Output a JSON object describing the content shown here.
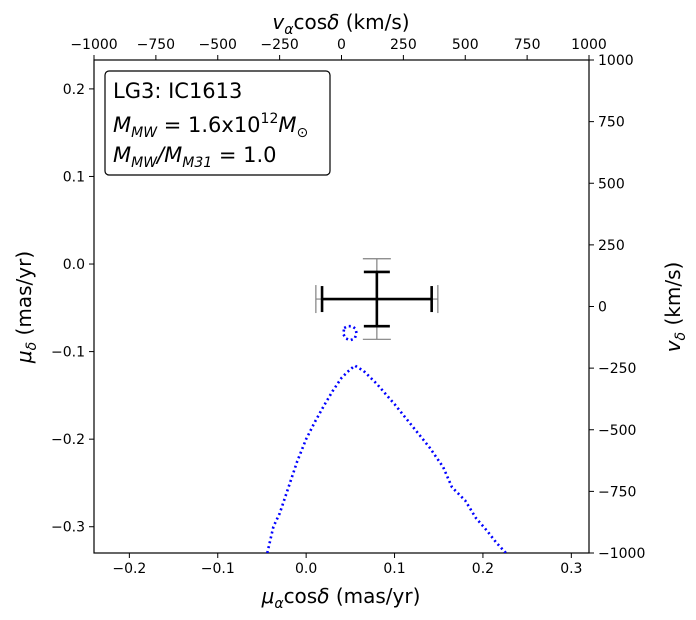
{
  "chart_data": {
    "type": "scatter",
    "xlabel": "μ_α cos δ (mas/yr)",
    "ylabel": "μ_δ (mas/yr)",
    "top_xlabel": "v_α cos δ (km/s)",
    "right_ylabel": "v_δ (km/s)",
    "xlim": [
      -0.24,
      0.32
    ],
    "ylim": [
      -0.33,
      0.233
    ],
    "top_xlim": [
      -1000,
      1000
    ],
    "right_ylim": [
      -1000,
      1000
    ],
    "x_ticks": [
      -0.2,
      -0.1,
      0.0,
      0.1,
      0.2,
      0.3
    ],
    "x_tick_labels": [
      "−0.2",
      "−0.1",
      "0.0",
      "0.1",
      "0.2",
      "0.3"
    ],
    "y_ticks": [
      -0.3,
      -0.2,
      -0.1,
      0.0,
      0.1,
      0.2
    ],
    "y_tick_labels": [
      "−0.3",
      "−0.2",
      "−0.1",
      "0.0",
      "0.1",
      "0.2"
    ],
    "top_x_ticks": [
      -1000,
      -750,
      -500,
      -250,
      0,
      250,
      500,
      750,
      1000
    ],
    "top_x_tick_labels": [
      "−1000",
      "−750",
      "−500",
      "−250",
      "0",
      "250",
      "500",
      "750",
      "1000"
    ],
    "right_y_ticks": [
      -1000,
      -750,
      -500,
      -250,
      0,
      250,
      500,
      750,
      1000
    ],
    "right_y_tick_labels": [
      "−1000",
      "−750",
      "−500",
      "−250",
      "0",
      "250",
      "500",
      "750",
      "1000"
    ],
    "legend": {
      "placement": "top-left",
      "line1": "LG3: IC1613",
      "line2_prefix": "M",
      "line2_sub": "MW",
      "line2_mid": " = 1.6x10",
      "line2_sup": "12",
      "line2_suffix": "M",
      "line2_suffix_sub": "⊙",
      "line3_prefix": "M",
      "line3_sub1": "MW",
      "line3_mid": "/M",
      "line3_sub2": "M31",
      "line3_suffix": " = 1.0"
    },
    "measurements": [
      {
        "name": "",
        "color": "#000000",
        "x": 0.08,
        "y": -0.04,
        "xerr": 0.062,
        "yerr": 0.031
      },
      {
        "name": "",
        "color": "#808080",
        "x": 0.08,
        "y": -0.04,
        "xerr": 0.069,
        "yerr": 0.046
      }
    ],
    "contours": [
      {
        "color": "#0000ff",
        "style": "dotted",
        "points": [
          [
            0.043,
            -0.073
          ],
          [
            0.047,
            -0.071
          ],
          [
            0.052,
            -0.071
          ],
          [
            0.056,
            -0.074
          ],
          [
            0.057,
            -0.079
          ],
          [
            0.055,
            -0.085
          ],
          [
            0.05,
            -0.087
          ],
          [
            0.045,
            -0.085
          ],
          [
            0.042,
            -0.08
          ],
          [
            0.043,
            -0.073
          ]
        ]
      },
      {
        "color": "#0000ff",
        "style": "dotted",
        "points": [
          [
            -0.044,
            -0.33
          ],
          [
            -0.037,
            -0.3
          ],
          [
            -0.03,
            -0.285
          ],
          [
            -0.02,
            -0.255
          ],
          [
            -0.01,
            -0.225
          ],
          [
            0.0,
            -0.2
          ],
          [
            0.01,
            -0.18
          ],
          [
            0.02,
            -0.162
          ],
          [
            0.03,
            -0.145
          ],
          [
            0.04,
            -0.13
          ],
          [
            0.048,
            -0.122
          ],
          [
            0.055,
            -0.116
          ],
          [
            0.065,
            -0.122
          ],
          [
            0.08,
            -0.137
          ],
          [
            0.1,
            -0.16
          ],
          [
            0.12,
            -0.185
          ],
          [
            0.14,
            -0.21
          ],
          [
            0.155,
            -0.232
          ],
          [
            0.165,
            -0.255
          ],
          [
            0.18,
            -0.27
          ],
          [
            0.192,
            -0.29
          ],
          [
            0.205,
            -0.305
          ],
          [
            0.215,
            -0.318
          ],
          [
            0.226,
            -0.33
          ]
        ]
      }
    ]
  }
}
